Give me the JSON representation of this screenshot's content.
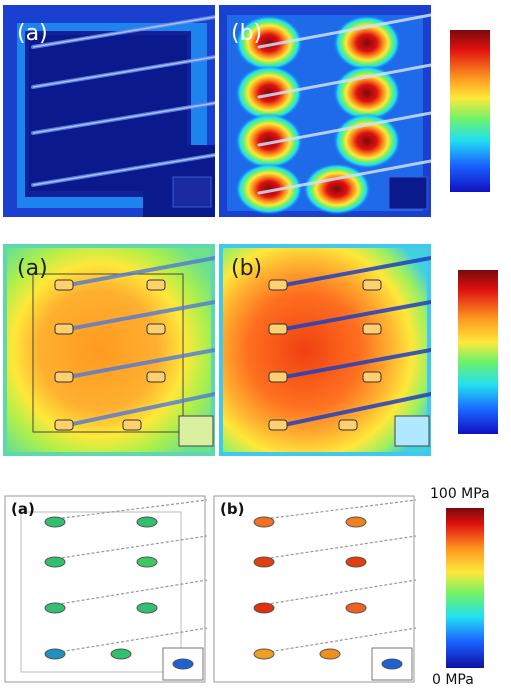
{
  "row1": {
    "left_label": "(a)",
    "right_label": "(b)"
  },
  "row2": {
    "left_label": "(a)",
    "right_label": "(b)"
  },
  "row3": {
    "left_label": "(a)",
    "right_label": "(b)"
  },
  "colorbar": {
    "max_label": "100 MPa",
    "min_label": "0 MPa"
  },
  "colors": {
    "deep_blue": "#0a1a8c",
    "blue": "#1a3cff",
    "cyan": "#22e0f0",
    "green": "#6ef26a",
    "yellow": "#ffe83a",
    "orange": "#ff9a20",
    "red": "#e01010",
    "dark_red": "#7a0a0a"
  }
}
